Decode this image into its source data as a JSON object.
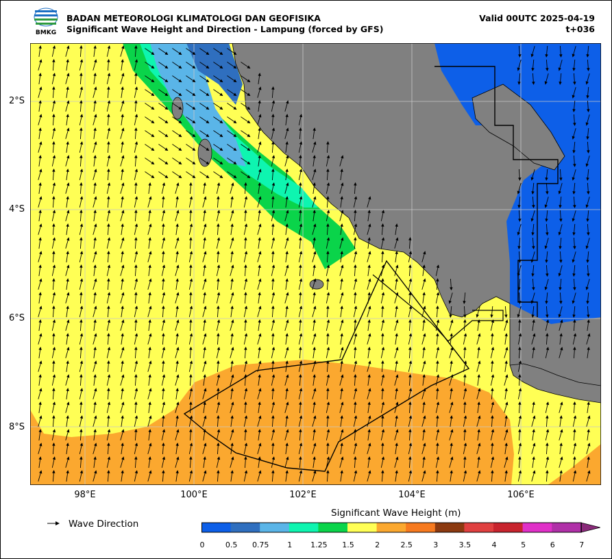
{
  "header": {
    "logo_text": "BMKG",
    "agency": "BADAN METEOROLOGI KLIMATOLOGI DAN GEOFISIKA",
    "subtitle": "Significant Wave Height and Direction - Lampung (forced by GFS)",
    "valid": "Valid 00UTC 2025-04-19",
    "lead": "t+036"
  },
  "map": {
    "lat_labels": [
      "2°S",
      "4°S",
      "6°S",
      "8°S"
    ],
    "lon_labels": [
      "98°E",
      "100°E",
      "102°E",
      "104°E",
      "106°E"
    ],
    "lon_range": [
      97,
      107.4
    ],
    "lat_range": [
      -1,
      -9.1
    ],
    "land_color": "#808080"
  },
  "legend": {
    "arrow_label": "Wave Direction"
  },
  "colorbar": {
    "title": "Significant Wave Height (m)",
    "ticks": [
      "0",
      "0.5",
      "0.75",
      "1",
      "1.25",
      "1.5",
      "2",
      "2.5",
      "3",
      "3.5",
      "4",
      "5",
      "6",
      "7"
    ],
    "colors": [
      "#0d5fe8",
      "#2f6fbf",
      "#5ab5e8",
      "#0ef5b0",
      "#0ad44a",
      "#ffff55",
      "#fba82f",
      "#f77a1f",
      "#8c3a10",
      "#e04040",
      "#c8242e",
      "#e030c8",
      "#b030a8"
    ],
    "extend_color": "#8a2a7a"
  }
}
